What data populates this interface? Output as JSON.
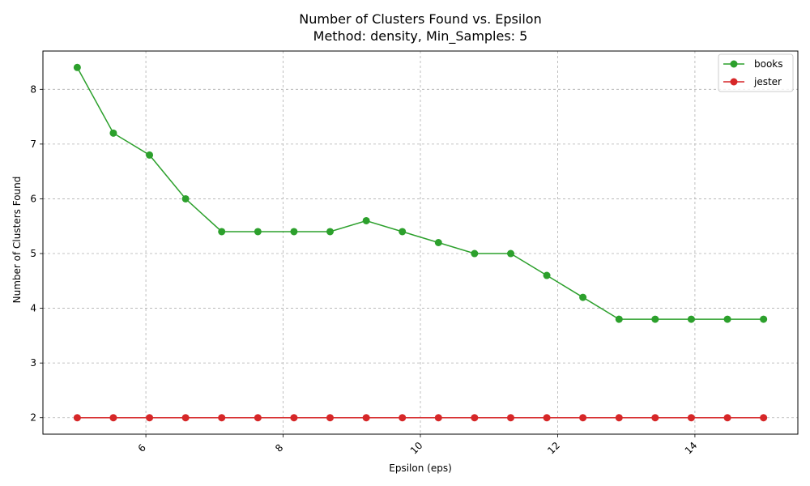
{
  "chart_data": {
    "type": "line",
    "title": "Number of Clusters Found vs. Epsilon",
    "subtitle": "Method: density, Min_Samples: 5",
    "xlabel": "Epsilon (eps)",
    "ylabel": "Number of Clusters Found",
    "xlim": [
      4.5,
      15.5
    ],
    "ylim": [
      1.7,
      8.7
    ],
    "x_ticks": [
      6,
      8,
      10,
      12,
      14
    ],
    "y_ticks": [
      2,
      3,
      4,
      5,
      6,
      7,
      8
    ],
    "grid": true,
    "legend_position": "top-right",
    "x": [
      5.0,
      5.526,
      6.053,
      6.579,
      7.105,
      7.632,
      8.158,
      8.684,
      9.211,
      9.737,
      10.263,
      10.789,
      11.316,
      11.842,
      12.368,
      12.895,
      13.421,
      13.947,
      14.474,
      15.0
    ],
    "series": [
      {
        "name": "books",
        "color": "#2ca02c",
        "values": [
          8.4,
          7.2,
          6.8,
          6.0,
          5.4,
          5.4,
          5.4,
          5.4,
          5.6,
          5.4,
          5.2,
          5.0,
          5.0,
          4.6,
          4.2,
          3.8,
          3.8,
          3.8,
          3.8,
          3.8
        ]
      },
      {
        "name": "jester",
        "color": "#d62728",
        "values": [
          2,
          2,
          2,
          2,
          2,
          2,
          2,
          2,
          2,
          2,
          2,
          2,
          2,
          2,
          2,
          2,
          2,
          2,
          2,
          2
        ]
      }
    ]
  }
}
